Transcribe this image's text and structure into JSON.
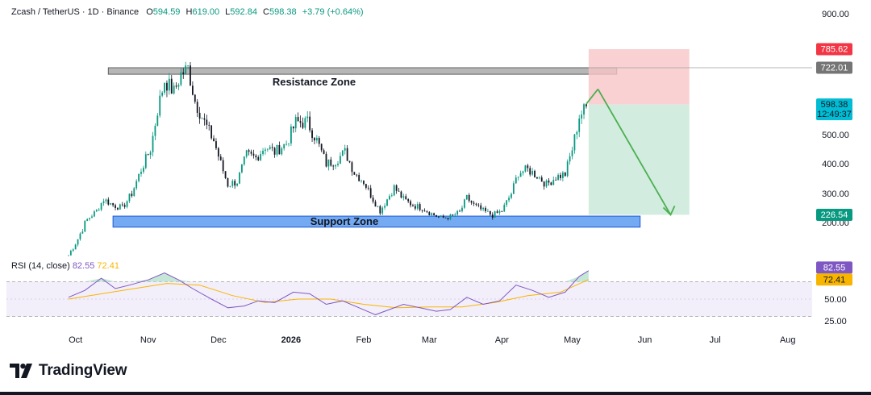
{
  "legend": {
    "symbol": "Zcash / TetherUS · 1D · Binance",
    "o_label": "O",
    "o_value": "594.59",
    "h_label": "H",
    "h_value": "619.00",
    "l_label": "L",
    "l_value": "592.84",
    "c_label": "C",
    "c_value": "598.38",
    "change": "+3.79 (+0.64%)"
  },
  "rsi_legend": {
    "label": "RSI (14, close)",
    "rsi_value": "82.55",
    "ma_value": "72.41"
  },
  "brand": {
    "name": "TradingView"
  },
  "colors": {
    "up": "#089981",
    "down": "#131722",
    "rsi": "#7e57c2",
    "rsi_ma": "#f7b500",
    "support": "#5b9bef",
    "resistance": "#9e9e9e",
    "target": "#4caf50",
    "stop": "#f23645"
  },
  "chart_data": [
    {
      "type": "candlestick",
      "title": "Zcash / TetherUS · 1D · Binance",
      "x_ticks": [
        "Oct",
        "Nov",
        "Dec",
        "2026",
        "Feb",
        "Mar",
        "Apr",
        "May",
        "Jun",
        "Jul",
        "Aug"
      ],
      "y_ticks": [
        "900.00",
        "500.00",
        "400.00",
        "300.00",
        "200.00"
      ],
      "ylim": [
        150,
        920
      ],
      "close_path": [
        [
          "2025-09-28",
          130
        ],
        [
          "2025-10-02",
          165
        ],
        [
          "2025-10-06",
          210
        ],
        [
          "2025-10-10",
          240
        ],
        [
          "2025-10-13",
          280
        ],
        [
          "2025-10-17",
          260
        ],
        [
          "2025-10-21",
          250
        ],
        [
          "2025-10-25",
          300
        ],
        [
          "2025-10-29",
          380
        ],
        [
          "2025-11-02",
          450
        ],
        [
          "2025-11-05",
          580
        ],
        [
          "2025-11-08",
          680
        ],
        [
          "2025-11-12",
          640
        ],
        [
          "2025-11-15",
          700
        ],
        [
          "2025-11-18",
          720
        ],
        [
          "2025-11-21",
          610
        ],
        [
          "2025-11-25",
          540
        ],
        [
          "2025-11-29",
          480
        ],
        [
          "2025-12-02",
          400
        ],
        [
          "2025-12-05",
          330
        ],
        [
          "2025-12-09",
          340
        ],
        [
          "2025-12-13",
          430
        ],
        [
          "2025-12-17",
          420
        ],
        [
          "2025-12-21",
          460
        ],
        [
          "2025-12-25",
          440
        ],
        [
          "2025-12-30",
          470
        ],
        [
          "2026-01-03",
          540
        ],
        [
          "2026-01-08",
          540
        ],
        [
          "2026-01-12",
          480
        ],
        [
          "2026-01-16",
          400
        ],
        [
          "2026-01-20",
          410
        ],
        [
          "2026-01-24",
          440
        ],
        [
          "2026-01-28",
          370
        ],
        [
          "2026-02-01",
          340
        ],
        [
          "2026-02-05",
          280
        ],
        [
          "2026-02-08",
          240
        ],
        [
          "2026-02-11",
          280
        ],
        [
          "2026-02-14",
          320
        ],
        [
          "2026-02-18",
          280
        ],
        [
          "2026-02-22",
          260
        ],
        [
          "2026-02-26",
          250
        ],
        [
          "2026-03-02",
          230
        ],
        [
          "2026-03-06",
          215
        ],
        [
          "2026-03-10",
          220
        ],
        [
          "2026-03-14",
          235
        ],
        [
          "2026-03-17",
          285
        ],
        [
          "2026-03-20",
          260
        ],
        [
          "2026-03-24",
          240
        ],
        [
          "2026-03-28",
          225
        ],
        [
          "2026-04-01",
          240
        ],
        [
          "2026-04-05",
          300
        ],
        [
          "2026-04-08",
          370
        ],
        [
          "2026-04-12",
          380
        ],
        [
          "2026-04-16",
          360
        ],
        [
          "2026-04-20",
          330
        ],
        [
          "2026-04-24",
          355
        ],
        [
          "2026-04-28",
          365
        ],
        [
          "2026-05-01",
          450
        ],
        [
          "2026-05-04",
          560
        ],
        [
          "2026-05-08",
          598.38
        ]
      ],
      "annotations": [
        {
          "label": "Resistance Zone",
          "y_low": 700,
          "y_high": 722
        },
        {
          "label": "Support Zone",
          "y_low": 190,
          "y_high": 222
        }
      ],
      "position": {
        "entry": 598.38,
        "stop": 785.62,
        "target": 226.54,
        "level_high": 722.01
      },
      "price_labels": [
        "785.62",
        "722.01",
        "598.38",
        "12:49:37",
        "226.54"
      ]
    },
    {
      "type": "line",
      "title": "RSI (14, close)",
      "y_ticks": [
        "50.00",
        "25.00"
      ],
      "ylim": [
        20,
        90
      ],
      "bands": [
        30,
        70
      ],
      "series": [
        {
          "name": "RSI",
          "points": [
            [
              "2025-09-28",
              52
            ],
            [
              "2025-10-05",
              60
            ],
            [
              "2025-10-12",
              74
            ],
            [
              "2025-10-18",
              62
            ],
            [
              "2025-10-24",
              66
            ],
            [
              "2025-11-01",
              72
            ],
            [
              "2025-11-08",
              80
            ],
            [
              "2025-11-14",
              72
            ],
            [
              "2025-11-20",
              62
            ],
            [
              "2025-11-28",
              50
            ],
            [
              "2025-12-05",
              40
            ],
            [
              "2025-12-12",
              42
            ],
            [
              "2025-12-18",
              48
            ],
            [
              "2025-12-25",
              46
            ],
            [
              "2026-01-02",
              58
            ],
            [
              "2026-01-09",
              56
            ],
            [
              "2026-01-16",
              44
            ],
            [
              "2026-01-23",
              48
            ],
            [
              "2026-01-30",
              40
            ],
            [
              "2026-02-06",
              32
            ],
            [
              "2026-02-12",
              38
            ],
            [
              "2026-02-18",
              44
            ],
            [
              "2026-02-25",
              40
            ],
            [
              "2026-03-04",
              36
            ],
            [
              "2026-03-10",
              38
            ],
            [
              "2026-03-17",
              52
            ],
            [
              "2026-03-24",
              44
            ],
            [
              "2026-03-31",
              48
            ],
            [
              "2026-04-07",
              66
            ],
            [
              "2026-04-14",
              60
            ],
            [
              "2026-04-21",
              52
            ],
            [
              "2026-04-28",
              58
            ],
            [
              "2026-05-04",
              76
            ],
            [
              "2026-05-08",
              82.55
            ]
          ]
        },
        {
          "name": "RSI-based MA",
          "points": [
            [
              "2025-09-28",
              50
            ],
            [
              "2025-10-12",
              56
            ],
            [
              "2025-10-26",
              62
            ],
            [
              "2025-11-09",
              68
            ],
            [
              "2025-11-23",
              66
            ],
            [
              "2025-12-07",
              54
            ],
            [
              "2025-12-21",
              46
            ],
            [
              "2026-01-04",
              50
            ],
            [
              "2026-01-18",
              50
            ],
            [
              "2026-02-01",
              44
            ],
            [
              "2026-02-15",
              40
            ],
            [
              "2026-03-01",
              41
            ],
            [
              "2026-03-15",
              41
            ],
            [
              "2026-03-29",
              46
            ],
            [
              "2026-04-12",
              54
            ],
            [
              "2026-04-26",
              58
            ],
            [
              "2026-05-08",
              72.41
            ]
          ]
        }
      ],
      "price_labels": [
        "82.55",
        "72.41"
      ]
    }
  ]
}
